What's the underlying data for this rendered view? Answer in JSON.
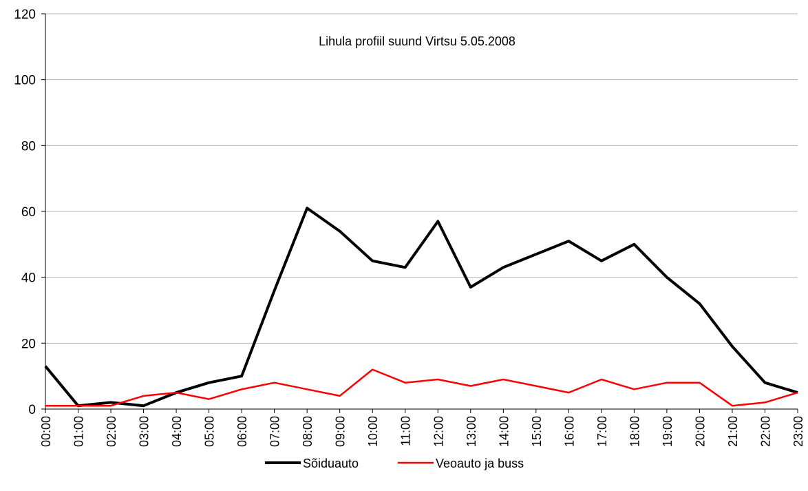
{
  "chart_data": {
    "type": "line",
    "title": "Lihula profiil suund Virtsu 5.05.2008",
    "xlabel": "",
    "ylabel": "",
    "ylim": [
      0,
      120
    ],
    "yticks": [
      "0",
      "20",
      "40",
      "60",
      "80",
      "100",
      "120"
    ],
    "grid": true,
    "legend_position": "bottom",
    "categories": [
      "00:00",
      "01:00",
      "02:00",
      "03:00",
      "04:00",
      "05:00",
      "06:00",
      "07:00",
      "08:00",
      "09:00",
      "10:00",
      "11:00",
      "12:00",
      "13:00",
      "14:00",
      "15:00",
      "16:00",
      "17:00",
      "18:00",
      "19:00",
      "20:00",
      "21:00",
      "22:00",
      "23:00"
    ],
    "series": [
      {
        "name": "Sõiduauto",
        "color": "#000000",
        "values": [
          13,
          1,
          2,
          1,
          5,
          8,
          10,
          36,
          61,
          54,
          45,
          43,
          57,
          37,
          43,
          47,
          51,
          45,
          50,
          40,
          32,
          19,
          8,
          5
        ]
      },
      {
        "name": "Veoauto ja buss",
        "color": "#ff0000",
        "values": [
          1,
          1,
          1,
          4,
          5,
          3,
          6,
          8,
          6,
          4,
          12,
          8,
          9,
          7,
          9,
          7,
          5,
          9,
          6,
          8,
          8,
          1,
          2,
          5
        ]
      }
    ]
  }
}
